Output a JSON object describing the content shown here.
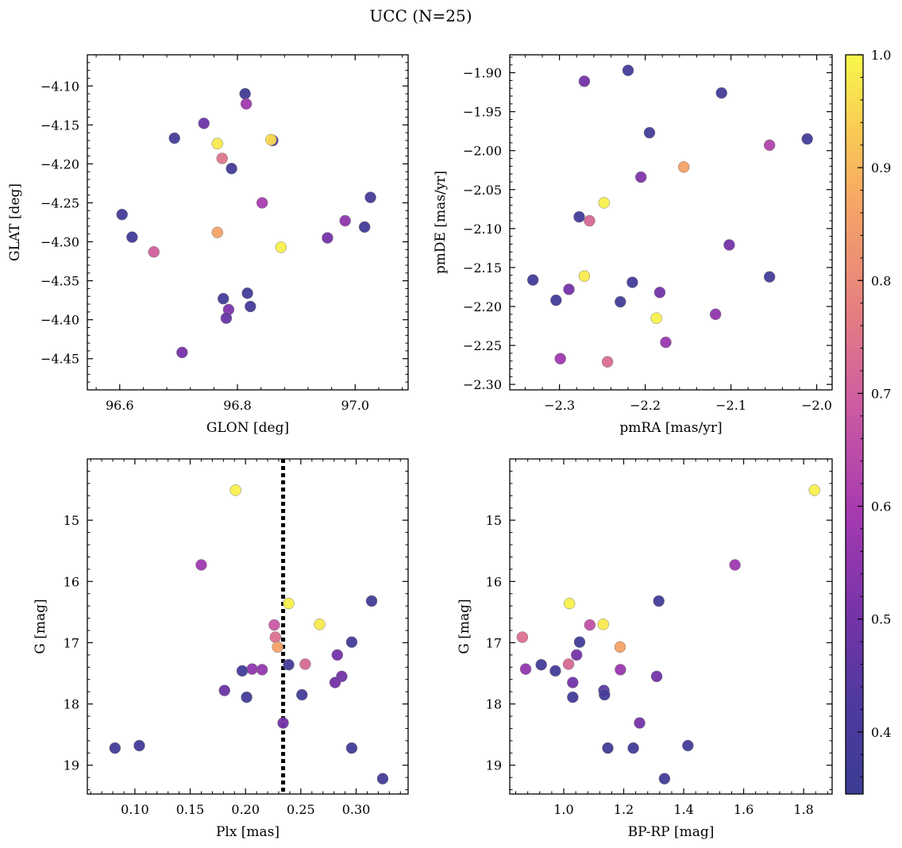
{
  "title": "UCC (N=25)",
  "chart_data": [
    {
      "type": "scatter",
      "xlabel": "GLON [deg]",
      "ylabel": "GLAT [deg]",
      "xlim": [
        96.545,
        97.09
      ],
      "ylim": [
        -4.49,
        -4.06
      ],
      "xticks": [
        96.6,
        96.8,
        97.0
      ],
      "xtick_labels": [
        "96.6",
        "96.8",
        "97.0"
      ],
      "yticks": [
        -4.1,
        -4.15,
        -4.2,
        -4.25,
        -4.3,
        -4.35,
        -4.4,
        -4.45
      ],
      "ytick_labels": [
        "−4.10",
        "−4.15",
        "−4.20",
        "−4.25",
        "−4.30",
        "−4.35",
        "−4.40",
        "−4.45"
      ],
      "points": [
        {
          "x": 96.813,
          "y": -4.11,
          "c": 0.36
        },
        {
          "x": 96.815,
          "y": -4.123,
          "c": 0.58
        },
        {
          "x": 96.693,
          "y": -4.167,
          "c": 0.38
        },
        {
          "x": 96.743,
          "y": -4.148,
          "c": 0.48
        },
        {
          "x": 96.766,
          "y": -4.174,
          "c": 0.98
        },
        {
          "x": 96.86,
          "y": -4.17,
          "c": 0.44
        },
        {
          "x": 96.857,
          "y": -4.169,
          "c": 0.96
        },
        {
          "x": 96.774,
          "y": -4.193,
          "c": 0.75
        },
        {
          "x": 96.79,
          "y": -4.206,
          "c": 0.38
        },
        {
          "x": 96.842,
          "y": -4.25,
          "c": 0.6
        },
        {
          "x": 97.026,
          "y": -4.243,
          "c": 0.38
        },
        {
          "x": 96.604,
          "y": -4.265,
          "c": 0.38
        },
        {
          "x": 96.983,
          "y": -4.273,
          "c": 0.55
        },
        {
          "x": 97.016,
          "y": -4.281,
          "c": 0.38
        },
        {
          "x": 96.621,
          "y": -4.294,
          "c": 0.38
        },
        {
          "x": 96.766,
          "y": -4.288,
          "c": 0.86
        },
        {
          "x": 96.953,
          "y": -4.295,
          "c": 0.5
        },
        {
          "x": 96.874,
          "y": -4.307,
          "c": 0.99
        },
        {
          "x": 96.658,
          "y": -4.313,
          "c": 0.7
        },
        {
          "x": 96.817,
          "y": -4.366,
          "c": 0.38
        },
        {
          "x": 96.776,
          "y": -4.373,
          "c": 0.38
        },
        {
          "x": 96.785,
          "y": -4.387,
          "c": 0.52
        },
        {
          "x": 96.822,
          "y": -4.383,
          "c": 0.38
        },
        {
          "x": 96.781,
          "y": -4.398,
          "c": 0.47
        },
        {
          "x": 96.706,
          "y": -4.442,
          "c": 0.5
        }
      ]
    },
    {
      "type": "scatter",
      "xlabel": "pmRA [mas/yr]",
      "ylabel": "pmDE [mas/yr]",
      "xlim": [
        -2.358,
        -1.982
      ],
      "ylim": [
        -2.307,
        -1.877
      ],
      "xticks": [
        -2.3,
        -2.2,
        -2.1,
        -2.0
      ],
      "xtick_labels": [
        "−2.3",
        "−2.2",
        "−2.1",
        "−2.0"
      ],
      "yticks": [
        -1.9,
        -1.95,
        -2.0,
        -2.05,
        -2.1,
        -2.15,
        -2.2,
        -2.25,
        -2.3
      ],
      "ytick_labels": [
        "−1.90",
        "−1.95",
        "−2.00",
        "−2.05",
        "−2.10",
        "−2.15",
        "−2.20",
        "−2.25",
        "−2.30"
      ],
      "points": [
        {
          "x": -2.22,
          "y": -1.897,
          "c": 0.38
        },
        {
          "x": -2.271,
          "y": -1.911,
          "c": 0.5
        },
        {
          "x": -2.111,
          "y": -1.926,
          "c": 0.38
        },
        {
          "x": -2.195,
          "y": -1.977,
          "c": 0.38
        },
        {
          "x": -2.011,
          "y": -1.985,
          "c": 0.38
        },
        {
          "x": -2.055,
          "y": -1.993,
          "c": 0.62
        },
        {
          "x": -2.155,
          "y": -2.021,
          "c": 0.86
        },
        {
          "x": -2.205,
          "y": -2.034,
          "c": 0.52
        },
        {
          "x": -2.248,
          "y": -2.067,
          "c": 0.99
        },
        {
          "x": -2.277,
          "y": -2.085,
          "c": 0.38
        },
        {
          "x": -2.265,
          "y": -2.09,
          "c": 0.72
        },
        {
          "x": -2.102,
          "y": -2.121,
          "c": 0.5
        },
        {
          "x": -2.331,
          "y": -2.166,
          "c": 0.38
        },
        {
          "x": -2.271,
          "y": -2.161,
          "c": 0.98
        },
        {
          "x": -2.055,
          "y": -2.162,
          "c": 0.38
        },
        {
          "x": -2.215,
          "y": -2.169,
          "c": 0.38
        },
        {
          "x": -2.289,
          "y": -2.178,
          "c": 0.5
        },
        {
          "x": -2.183,
          "y": -2.182,
          "c": 0.5
        },
        {
          "x": -2.304,
          "y": -2.192,
          "c": 0.38
        },
        {
          "x": -2.229,
          "y": -2.194,
          "c": 0.38
        },
        {
          "x": -2.118,
          "y": -2.21,
          "c": 0.55
        },
        {
          "x": -2.187,
          "y": -2.215,
          "c": 0.99
        },
        {
          "x": -2.176,
          "y": -2.246,
          "c": 0.57
        },
        {
          "x": -2.299,
          "y": -2.267,
          "c": 0.58
        },
        {
          "x": -2.244,
          "y": -2.271,
          "c": 0.73
        }
      ]
    },
    {
      "type": "scatter",
      "xlabel": "Plx [mas]",
      "ylabel": "G [mag]",
      "xlim": [
        0.057,
        0.347
      ],
      "ylim": [
        19.47,
        14.0
      ],
      "xticks": [
        0.1,
        0.15,
        0.2,
        0.25,
        0.3
      ],
      "xtick_labels": [
        "0.10",
        "0.15",
        "0.20",
        "0.25",
        "0.30"
      ],
      "yticks": [
        15,
        16,
        17,
        18,
        19
      ],
      "ytick_labels": [
        "15",
        "16",
        "17",
        "18",
        "19"
      ],
      "vline": 0.234,
      "points": [
        {
          "x": 0.191,
          "y": 14.51,
          "c": 0.99
        },
        {
          "x": 0.16,
          "y": 15.73,
          "c": 0.58
        },
        {
          "x": 0.239,
          "y": 16.36,
          "c": 0.99
        },
        {
          "x": 0.314,
          "y": 16.32,
          "c": 0.38
        },
        {
          "x": 0.267,
          "y": 16.7,
          "c": 0.98
        },
        {
          "x": 0.226,
          "y": 16.71,
          "c": 0.68
        },
        {
          "x": 0.227,
          "y": 16.91,
          "c": 0.74
        },
        {
          "x": 0.296,
          "y": 16.99,
          "c": 0.38
        },
        {
          "x": 0.229,
          "y": 17.07,
          "c": 0.86
        },
        {
          "x": 0.283,
          "y": 17.2,
          "c": 0.5
        },
        {
          "x": 0.254,
          "y": 17.35,
          "c": 0.72
        },
        {
          "x": 0.239,
          "y": 17.36,
          "c": 0.38
        },
        {
          "x": 0.206,
          "y": 17.43,
          "c": 0.55
        },
        {
          "x": 0.215,
          "y": 17.44,
          "c": 0.56
        },
        {
          "x": 0.197,
          "y": 17.46,
          "c": 0.38
        },
        {
          "x": 0.287,
          "y": 17.55,
          "c": 0.5
        },
        {
          "x": 0.281,
          "y": 17.65,
          "c": 0.5
        },
        {
          "x": 0.181,
          "y": 17.78,
          "c": 0.48
        },
        {
          "x": 0.251,
          "y": 17.85,
          "c": 0.38
        },
        {
          "x": 0.201,
          "y": 17.89,
          "c": 0.38
        },
        {
          "x": 0.234,
          "y": 18.31,
          "c": 0.5
        },
        {
          "x": 0.104,
          "y": 18.68,
          "c": 0.38
        },
        {
          "x": 0.082,
          "y": 18.72,
          "c": 0.38
        },
        {
          "x": 0.296,
          "y": 18.72,
          "c": 0.38
        },
        {
          "x": 0.324,
          "y": 19.22,
          "c": 0.38
        }
      ]
    },
    {
      "type": "scatter",
      "xlabel": "BP-RP [mag]",
      "ylabel": "G [mag]",
      "xlim": [
        0.82,
        1.895
      ],
      "ylim": [
        19.47,
        14.0
      ],
      "xticks": [
        1.0,
        1.2,
        1.4,
        1.6,
        1.8
      ],
      "xtick_labels": [
        "1.0",
        "1.2",
        "1.4",
        "1.6",
        "1.8"
      ],
      "yticks": [
        15,
        16,
        17,
        18,
        19
      ],
      "ytick_labels": [
        "15",
        "16",
        "17",
        "18",
        "19"
      ],
      "points": [
        {
          "x": 1.836,
          "y": 14.51,
          "c": 0.99
        },
        {
          "x": 1.571,
          "y": 15.73,
          "c": 0.58
        },
        {
          "x": 1.019,
          "y": 16.36,
          "c": 0.99
        },
        {
          "x": 1.317,
          "y": 16.32,
          "c": 0.38
        },
        {
          "x": 1.132,
          "y": 16.7,
          "c": 0.98
        },
        {
          "x": 1.087,
          "y": 16.71,
          "c": 0.66
        },
        {
          "x": 0.862,
          "y": 16.91,
          "c": 0.74
        },
        {
          "x": 1.053,
          "y": 16.99,
          "c": 0.38
        },
        {
          "x": 1.188,
          "y": 17.07,
          "c": 0.86
        },
        {
          "x": 1.043,
          "y": 17.2,
          "c": 0.5
        },
        {
          "x": 1.016,
          "y": 17.35,
          "c": 0.72
        },
        {
          "x": 0.925,
          "y": 17.36,
          "c": 0.38
        },
        {
          "x": 0.873,
          "y": 17.43,
          "c": 0.55
        },
        {
          "x": 1.189,
          "y": 17.44,
          "c": 0.57
        },
        {
          "x": 0.972,
          "y": 17.46,
          "c": 0.38
        },
        {
          "x": 1.31,
          "y": 17.55,
          "c": 0.5
        },
        {
          "x": 1.03,
          "y": 17.65,
          "c": 0.5
        },
        {
          "x": 1.134,
          "y": 17.78,
          "c": 0.45
        },
        {
          "x": 1.136,
          "y": 17.85,
          "c": 0.38
        },
        {
          "x": 1.03,
          "y": 17.89,
          "c": 0.38
        },
        {
          "x": 1.253,
          "y": 18.31,
          "c": 0.5
        },
        {
          "x": 1.414,
          "y": 18.68,
          "c": 0.38
        },
        {
          "x": 1.147,
          "y": 18.72,
          "c": 0.38
        },
        {
          "x": 1.232,
          "y": 18.72,
          "c": 0.38
        },
        {
          "x": 1.336,
          "y": 19.22,
          "c": 0.38
        }
      ]
    }
  ],
  "colorbar": {
    "colormap": "plasma",
    "range": [
      0.345,
      1.0
    ],
    "ticks": [
      0.4,
      0.5,
      0.6,
      0.7,
      0.8,
      0.9,
      1.0
    ],
    "tick_labels": [
      "0.4",
      "0.5",
      "0.6",
      "0.7",
      "0.8",
      "0.9",
      "1.0"
    ]
  }
}
